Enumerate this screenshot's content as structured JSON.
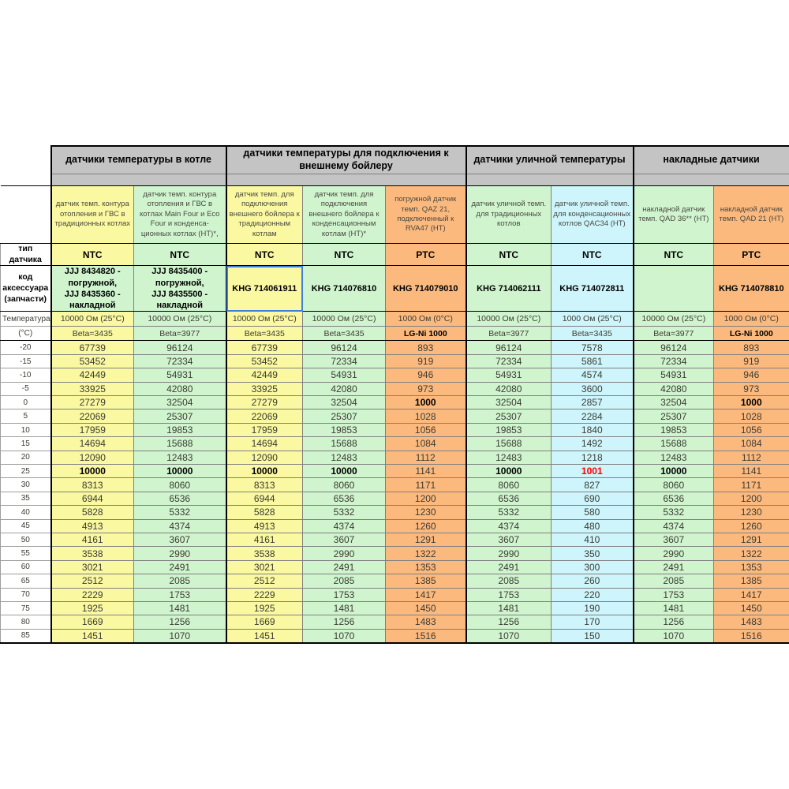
{
  "groups": [
    {
      "label": "датчики температуры в котле"
    },
    {
      "label": "датчики температуры для подключения к внешнему бойлеру"
    },
    {
      "label": "датчики уличной температуры"
    },
    {
      "label": "накладные датчики"
    }
  ],
  "row_labels": {
    "type": "тип датчика",
    "code": "код аксессуара (запчасти)",
    "temp_line1": "Температура",
    "temp_line2": "(°C)"
  },
  "columns": [
    {
      "desc": "датчик темп. контура отопления и ГВС в традиционных котлах",
      "type": "NTC",
      "code": "JJJ 8434820 - погружной,\nJJJ 8435360 - накладной",
      "resistance": "10000 Ом (25°C)",
      "beta": "Beta=3435"
    },
    {
      "desc": "датчик темп. контура отопления и ГВС в котлах Main Four и Eco Four и конденса-ционных котлах (НТ)*,",
      "type": "NTC",
      "code": "JJJ 8435400 - погружной,\nJJJ 8435500 - накладной",
      "resistance": "10000 Ом (25°C)",
      "beta": "Beta=3977"
    },
    {
      "desc": "датчик темп. для подключения внешнего бойлера к традиционным котлам",
      "type": "NTC",
      "code": "KHG 714061911",
      "resistance": "10000 Ом (25°C)",
      "beta": "Beta=3435"
    },
    {
      "desc": "датчик темп. для подключения внешнего бойлера к конденсационным котлам (НТ)*",
      "type": "NTC",
      "code": "KHG 714076810",
      "resistance": "10000 Ом (25°C)",
      "beta": "Beta=3435"
    },
    {
      "desc": "погружной датчик темп. QAZ 21, подключенный к RVA47 (НТ)",
      "type": "PTC",
      "code": "KHG 714079010",
      "resistance": "1000 Ом (0°C)",
      "beta": "LG-Ni 1000"
    },
    {
      "desc": "датчик уличной темп. для традиционных котлов",
      "type": "NTC",
      "code": "KHG 714062111",
      "resistance": "10000 Ом (25°C)",
      "beta": "Beta=3977"
    },
    {
      "desc": "датчик уличной темп. для конденсационных котлов QAC34 (НТ)",
      "type": "NTC",
      "code": "KHG 714072811",
      "resistance": "1000 Ом (25°C)",
      "beta": "Beta=3435"
    },
    {
      "desc": "накладной датчик темп. QAD 36** (НТ)",
      "type": "NTC",
      "code": "",
      "resistance": "10000 Ом (25°C)",
      "beta": "Beta=3977"
    },
    {
      "desc": "накладной датчик темп. QAD 21 (НТ)",
      "type": "PTC",
      "code": "KHG 714078810",
      "resistance": "1000 Ом (0°C)",
      "beta": "LG-Ni 1000"
    }
  ],
  "selected_cell": {
    "column_index": 2,
    "row": "code",
    "value": "KHG 714061911",
    "border_color": "#3e7fe0"
  },
  "colors": {
    "yellow": "#faf8a0",
    "green": "#cff4ce",
    "orange": "#fbb97e",
    "blue": "#cdf5fb",
    "header_gray": "#c4c4c4",
    "highlight_red": "#ff0000",
    "selection_blue": "#3e7fe0"
  },
  "rows": [
    {
      "t": "-20",
      "v": [
        67739,
        96124,
        67739,
        96124,
        893,
        96124,
        7578,
        96124,
        893
      ]
    },
    {
      "t": "-15",
      "v": [
        53452,
        72334,
        53452,
        72334,
        919,
        72334,
        5861,
        72334,
        919
      ]
    },
    {
      "t": "-10",
      "v": [
        42449,
        54931,
        42449,
        54931,
        946,
        54931,
        4574,
        54931,
        946
      ]
    },
    {
      "t": "-5",
      "v": [
        33925,
        42080,
        33925,
        42080,
        973,
        42080,
        3600,
        42080,
        973
      ]
    },
    {
      "t": "0",
      "v": [
        27279,
        32504,
        27279,
        32504,
        1000,
        32504,
        2857,
        32504,
        1000
      ],
      "bold": [
        4,
        8
      ]
    },
    {
      "t": "5",
      "v": [
        22069,
        25307,
        22069,
        25307,
        1028,
        25307,
        2284,
        25307,
        1028
      ]
    },
    {
      "t": "10",
      "v": [
        17959,
        19853,
        17959,
        19853,
        1056,
        19853,
        1840,
        19853,
        1056
      ]
    },
    {
      "t": "15",
      "v": [
        14694,
        15688,
        14694,
        15688,
        1084,
        15688,
        1492,
        15688,
        1084
      ]
    },
    {
      "t": "20",
      "v": [
        12090,
        12483,
        12090,
        12483,
        1112,
        12483,
        1218,
        12483,
        1112
      ]
    },
    {
      "t": "25",
      "v": [
        10000,
        10000,
        10000,
        10000,
        1141,
        10000,
        1001,
        10000,
        1141
      ],
      "bold": [
        0,
        1,
        2,
        3,
        5,
        7
      ],
      "red": [
        6
      ]
    },
    {
      "t": "30",
      "v": [
        8313,
        8060,
        8313,
        8060,
        1171,
        8060,
        827,
        8060,
        1171
      ]
    },
    {
      "t": "35",
      "v": [
        6944,
        6536,
        6944,
        6536,
        1200,
        6536,
        690,
        6536,
        1200
      ]
    },
    {
      "t": "40",
      "v": [
        5828,
        5332,
        5828,
        5332,
        1230,
        5332,
        580,
        5332,
        1230
      ]
    },
    {
      "t": "45",
      "v": [
        4913,
        4374,
        4913,
        4374,
        1260,
        4374,
        480,
        4374,
        1260
      ]
    },
    {
      "t": "50",
      "v": [
        4161,
        3607,
        4161,
        3607,
        1291,
        3607,
        410,
        3607,
        1291
      ]
    },
    {
      "t": "55",
      "v": [
        3538,
        2990,
        3538,
        2990,
        1322,
        2990,
        350,
        2990,
        1322
      ]
    },
    {
      "t": "60",
      "v": [
        3021,
        2491,
        3021,
        2491,
        1353,
        2491,
        300,
        2491,
        1353
      ]
    },
    {
      "t": "65",
      "v": [
        2512,
        2085,
        2512,
        2085,
        1385,
        2085,
        260,
        2085,
        1385
      ]
    },
    {
      "t": "70",
      "v": [
        2229,
        1753,
        2229,
        1753,
        1417,
        1753,
        220,
        1753,
        1417
      ]
    },
    {
      "t": "75",
      "v": [
        1925,
        1481,
        1925,
        1481,
        1450,
        1481,
        190,
        1481,
        1450
      ]
    },
    {
      "t": "80",
      "v": [
        1669,
        1256,
        1669,
        1256,
        1483,
        1256,
        170,
        1256,
        1483
      ]
    },
    {
      "t": "85",
      "v": [
        1451,
        1070,
        1451,
        1070,
        1516,
        1070,
        150,
        1070,
        1516
      ]
    }
  ]
}
